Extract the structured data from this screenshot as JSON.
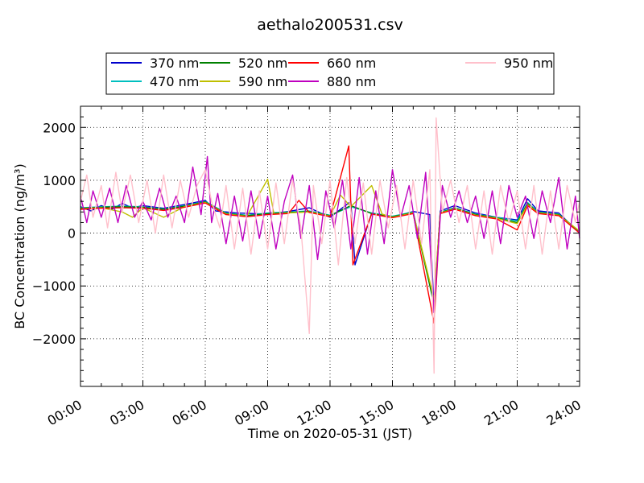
{
  "chart_data": {
    "type": "line",
    "title": "aethalo200531.csv",
    "xlabel": "Time on 2020-05-31 (JST)",
    "ylabel": "BC Concentration (ng/m³)",
    "x_ticks": [
      "00:00",
      "03:00",
      "06:00",
      "09:00",
      "12:00",
      "15:00",
      "18:00",
      "21:00",
      "24:00"
    ],
    "y_ticks": [
      "−2000",
      "−1000",
      "0",
      "1000",
      "2000"
    ],
    "y_tick_values": [
      -2000,
      -1000,
      0,
      1000,
      2000
    ],
    "xlim_hours": [
      0,
      24
    ],
    "ylim": [
      -2900,
      2400
    ],
    "grid": true,
    "legend_position": "top, outside plot",
    "series": [
      {
        "name": "370 nm",
        "color": "#0000cc",
        "points": [
          [
            0,
            500
          ],
          [
            0.5,
            420
          ],
          [
            1,
            520
          ],
          [
            1.5,
            450
          ],
          [
            2,
            560
          ],
          [
            2.5,
            480
          ],
          [
            3,
            520
          ],
          [
            4,
            470
          ],
          [
            5,
            540
          ],
          [
            6,
            620
          ],
          [
            6.5,
            420
          ],
          [
            7.5,
            380
          ],
          [
            9,
            360
          ],
          [
            10,
            410
          ],
          [
            11,
            480
          ],
          [
            12,
            300
          ],
          [
            13,
            600
          ],
          [
            13.2,
            -600
          ],
          [
            14,
            380
          ],
          [
            15,
            300
          ],
          [
            16,
            410
          ],
          [
            16.8,
            350
          ],
          [
            17.0,
            -1500
          ],
          [
            17.3,
            420
          ],
          [
            18,
            520
          ],
          [
            19,
            380
          ],
          [
            20,
            300
          ],
          [
            21,
            250
          ],
          [
            21.5,
            650
          ],
          [
            22,
            420
          ],
          [
            23,
            380
          ],
          [
            24,
            0
          ]
        ]
      },
      {
        "name": "470 nm",
        "color": "#00bfbf",
        "points": [
          [
            0,
            480
          ],
          [
            1,
            500
          ],
          [
            2,
            510
          ],
          [
            3,
            500
          ],
          [
            4,
            460
          ],
          [
            5,
            520
          ],
          [
            6,
            600
          ],
          [
            7,
            380
          ],
          [
            8,
            340
          ],
          [
            9,
            380
          ],
          [
            10,
            400
          ],
          [
            11,
            420
          ],
          [
            12,
            340
          ],
          [
            13,
            500
          ],
          [
            14,
            380
          ],
          [
            15,
            320
          ],
          [
            16,
            400
          ],
          [
            17.0,
            -1300
          ],
          [
            17.3,
            400
          ],
          [
            18,
            480
          ],
          [
            19,
            360
          ],
          [
            20,
            300
          ],
          [
            21,
            230
          ],
          [
            21.5,
            580
          ],
          [
            22,
            400
          ],
          [
            23,
            360
          ],
          [
            24,
            20
          ]
        ]
      },
      {
        "name": "520 nm",
        "color": "#008000",
        "points": [
          [
            0,
            470
          ],
          [
            1,
            490
          ],
          [
            2,
            500
          ],
          [
            3,
            490
          ],
          [
            4,
            450
          ],
          [
            5,
            510
          ],
          [
            6,
            590
          ],
          [
            7,
            370
          ],
          [
            8,
            330
          ],
          [
            9,
            370
          ],
          [
            10,
            390
          ],
          [
            11,
            410
          ],
          [
            12,
            330
          ],
          [
            13,
            520
          ],
          [
            14,
            370
          ],
          [
            15,
            310
          ],
          [
            16,
            390
          ],
          [
            17.0,
            -1350
          ],
          [
            17.3,
            390
          ],
          [
            18,
            470
          ],
          [
            19,
            350
          ],
          [
            20,
            290
          ],
          [
            21,
            200
          ],
          [
            21.5,
            560
          ],
          [
            22,
            390
          ],
          [
            23,
            350
          ],
          [
            24,
            30
          ]
        ]
      },
      {
        "name": "590 nm",
        "color": "#bfbf00",
        "points": [
          [
            0,
            460
          ],
          [
            1,
            480
          ],
          [
            2,
            400
          ],
          [
            2.5,
            300
          ],
          [
            3,
            480
          ],
          [
            4,
            300
          ],
          [
            5,
            500
          ],
          [
            6,
            580
          ],
          [
            7,
            360
          ],
          [
            8,
            320
          ],
          [
            9,
            1020
          ],
          [
            9.3,
            360
          ],
          [
            10,
            380
          ],
          [
            11,
            400
          ],
          [
            12,
            320
          ],
          [
            12.5,
            720
          ],
          [
            13,
            500
          ],
          [
            14,
            900
          ],
          [
            14.5,
            360
          ],
          [
            15,
            300
          ],
          [
            16,
            380
          ],
          [
            17.0,
            -1250
          ],
          [
            17.3,
            380
          ],
          [
            18,
            460
          ],
          [
            19,
            340
          ],
          [
            20,
            280
          ],
          [
            21,
            180
          ],
          [
            21.5,
            540
          ],
          [
            22,
            380
          ],
          [
            23,
            340
          ],
          [
            24,
            40
          ]
        ]
      },
      {
        "name": "660 nm",
        "color": "#ff0000",
        "points": [
          [
            0,
            450
          ],
          [
            1,
            470
          ],
          [
            2,
            480
          ],
          [
            3,
            470
          ],
          [
            4,
            430
          ],
          [
            5,
            490
          ],
          [
            6,
            570
          ],
          [
            7,
            350
          ],
          [
            8,
            310
          ],
          [
            9,
            350
          ],
          [
            10,
            370
          ],
          [
            10.5,
            620
          ],
          [
            11,
            390
          ],
          [
            12,
            310
          ],
          [
            12.9,
            1650
          ],
          [
            13.1,
            -600
          ],
          [
            14,
            360
          ],
          [
            15,
            290
          ],
          [
            16,
            370
          ],
          [
            17.0,
            -1700
          ],
          [
            17.3,
            370
          ],
          [
            18,
            450
          ],
          [
            19,
            330
          ],
          [
            20,
            270
          ],
          [
            21,
            60
          ],
          [
            21.5,
            520
          ],
          [
            22,
            370
          ],
          [
            23,
            330
          ],
          [
            24,
            0
          ]
        ]
      },
      {
        "name": "880 nm",
        "color": "#bf00bf",
        "points": [
          [
            0,
            700
          ],
          [
            0.3,
            200
          ],
          [
            0.6,
            800
          ],
          [
            1,
            300
          ],
          [
            1.4,
            850
          ],
          [
            1.8,
            200
          ],
          [
            2.2,
            900
          ],
          [
            2.6,
            300
          ],
          [
            3,
            600
          ],
          [
            3.4,
            250
          ],
          [
            3.8,
            850
          ],
          [
            4.2,
            300
          ],
          [
            4.6,
            700
          ],
          [
            5,
            200
          ],
          [
            5.4,
            1250
          ],
          [
            5.8,
            350
          ],
          [
            6.1,
            1450
          ],
          [
            6.3,
            200
          ],
          [
            6.6,
            750
          ],
          [
            7,
            -200
          ],
          [
            7.4,
            700
          ],
          [
            7.8,
            -150
          ],
          [
            8.2,
            800
          ],
          [
            8.6,
            -100
          ],
          [
            9,
            700
          ],
          [
            9.4,
            -300
          ],
          [
            9.8,
            600
          ],
          [
            10.2,
            1100
          ],
          [
            10.6,
            -100
          ],
          [
            11,
            900
          ],
          [
            11.4,
            -500
          ],
          [
            11.8,
            800
          ],
          [
            12.2,
            100
          ],
          [
            12.6,
            1000
          ],
          [
            13,
            -300
          ],
          [
            13.4,
            1050
          ],
          [
            13.8,
            -400
          ],
          [
            14.2,
            800
          ],
          [
            14.6,
            -200
          ],
          [
            15,
            1200
          ],
          [
            15.4,
            300
          ],
          [
            15.8,
            900
          ],
          [
            16.2,
            -100
          ],
          [
            16.6,
            1150
          ],
          [
            17.0,
            -1500
          ],
          [
            17.4,
            900
          ],
          [
            17.8,
            300
          ],
          [
            18.2,
            800
          ],
          [
            18.6,
            200
          ],
          [
            19,
            700
          ],
          [
            19.4,
            -100
          ],
          [
            19.8,
            800
          ],
          [
            20.2,
            -200
          ],
          [
            20.6,
            900
          ],
          [
            21,
            300
          ],
          [
            21.4,
            700
          ],
          [
            21.8,
            -100
          ],
          [
            22.2,
            800
          ],
          [
            22.6,
            200
          ],
          [
            23,
            1050
          ],
          [
            23.4,
            -300
          ],
          [
            23.8,
            700
          ],
          [
            24,
            -100
          ]
        ]
      },
      {
        "name": "950 nm",
        "color": "#ffc0cb",
        "points": [
          [
            0,
            600
          ],
          [
            0.3,
            1100
          ],
          [
            0.6,
            300
          ],
          [
            1,
            900
          ],
          [
            1.3,
            100
          ],
          [
            1.7,
            1150
          ],
          [
            2,
            400
          ],
          [
            2.4,
            1100
          ],
          [
            2.8,
            200
          ],
          [
            3.2,
            1000
          ],
          [
            3.6,
            0
          ],
          [
            4,
            1100
          ],
          [
            4.4,
            100
          ],
          [
            4.8,
            1000
          ],
          [
            5.2,
            300
          ],
          [
            5.6,
            900
          ],
          [
            6.0,
            1200
          ],
          [
            6.3,
            600
          ],
          [
            6.7,
            100
          ],
          [
            7,
            900
          ],
          [
            7.4,
            -300
          ],
          [
            7.8,
            850
          ],
          [
            8.2,
            -400
          ],
          [
            8.6,
            800
          ],
          [
            9,
            -300
          ],
          [
            9.4,
            950
          ],
          [
            9.8,
            -200
          ],
          [
            10.2,
            1000
          ],
          [
            10.6,
            100
          ],
          [
            11.0,
            -1900
          ],
          [
            11.2,
            900
          ],
          [
            11.6,
            -200
          ],
          [
            12,
            1000
          ],
          [
            12.4,
            -600
          ],
          [
            12.8,
            1050
          ],
          [
            13.2,
            -200
          ],
          [
            13.6,
            950
          ],
          [
            14,
            -400
          ],
          [
            14.4,
            1000
          ],
          [
            14.8,
            100
          ],
          [
            15.2,
            900
          ],
          [
            15.6,
            -300
          ],
          [
            16,
            1000
          ],
          [
            16.4,
            -200
          ],
          [
            16.8,
            1200
          ],
          [
            17.0,
            -2650
          ],
          [
            17.1,
            2180
          ],
          [
            17.4,
            400
          ],
          [
            17.8,
            1000
          ],
          [
            18.2,
            200
          ],
          [
            18.6,
            900
          ],
          [
            19,
            -300
          ],
          [
            19.4,
            800
          ],
          [
            19.8,
            -400
          ],
          [
            20.2,
            900
          ],
          [
            20.6,
            200
          ],
          [
            21,
            800
          ],
          [
            21.4,
            -300
          ],
          [
            21.8,
            900
          ],
          [
            22.2,
            -400
          ],
          [
            22.6,
            800
          ],
          [
            23,
            -300
          ],
          [
            23.4,
            900
          ],
          [
            23.8,
            200
          ],
          [
            24,
            600
          ]
        ]
      }
    ]
  }
}
